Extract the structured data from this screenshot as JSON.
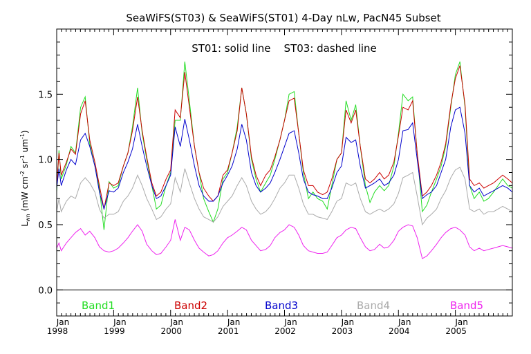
{
  "chart_data": {
    "type": "line",
    "title": "SeaWiFS(ST03) & SeaWiFS(ST01) 4-Day nLw, PacN45 Subset",
    "subtitle": "ST01: solid line    ST03: dashed line",
    "xlabel": "",
    "ylabel": "L_wn (mW cm^-2 sr^-1 um^-1)",
    "ylabel_parts": {
      "main": "L",
      "sub": "wn",
      "open": " (mW cm",
      "exp1": "-2",
      "mid1": " sr",
      "exp2": "-1",
      "mid2": " um",
      "exp3": "-1",
      "close": ")"
    },
    "xlim": [
      1998.0,
      2006.0
    ],
    "ylim": [
      -0.2,
      2.0
    ],
    "x_ticks": [
      {
        "value": 1998,
        "month": "Jan",
        "year": "1998"
      },
      {
        "value": 1999,
        "month": "Jan",
        "year": "1999"
      },
      {
        "value": 2000,
        "month": "Jan",
        "year": "2000"
      },
      {
        "value": 2001,
        "month": "Jan",
        "year": "2001"
      },
      {
        "value": 2002,
        "month": "Jan",
        "year": "2002"
      },
      {
        "value": 2003,
        "month": "Jan",
        "year": "2003"
      },
      {
        "value": 2004,
        "month": "Jan",
        "year": "2004"
      },
      {
        "value": 2005,
        "month": "Jan",
        "year": "2005"
      }
    ],
    "y_ticks": [
      "0.0",
      "0.5",
      "1.0",
      "1.5"
    ],
    "y_tick_values": [
      0.0,
      0.5,
      1.0,
      1.5
    ],
    "zero_line": 0.0,
    "x": [
      1998.0,
      1998.04,
      1998.08,
      1998.17,
      1998.25,
      1998.33,
      1998.42,
      1998.5,
      1998.58,
      1998.67,
      1998.75,
      1998.83,
      1998.92,
      1999.0,
      1999.08,
      1999.17,
      1999.25,
      1999.33,
      1999.42,
      1999.5,
      1999.58,
      1999.67,
      1999.75,
      1999.83,
      1999.92,
      2000.0,
      2000.08,
      2000.17,
      2000.25,
      2000.33,
      2000.42,
      2000.5,
      2000.58,
      2000.67,
      2000.75,
      2000.83,
      2000.92,
      2001.0,
      2001.08,
      2001.17,
      2001.25,
      2001.33,
      2001.42,
      2001.5,
      2001.58,
      2001.67,
      2001.75,
      2001.83,
      2001.92,
      2002.0,
      2002.08,
      2002.17,
      2002.25,
      2002.33,
      2002.42,
      2002.5,
      2002.58,
      2002.67,
      2002.75,
      2002.83,
      2002.92,
      2003.0,
      2003.08,
      2003.17,
      2003.25,
      2003.33,
      2003.42,
      2003.5,
      2003.58,
      2003.67,
      2003.75,
      2003.83,
      2003.92,
      2004.0,
      2004.08,
      2004.17,
      2004.25,
      2004.33,
      2004.42,
      2004.5,
      2004.58,
      2004.67,
      2004.75,
      2004.83,
      2004.92,
      2005.0,
      2005.08,
      2005.17,
      2005.25,
      2005.33,
      2005.42,
      2005.5,
      2005.58,
      2005.67,
      2005.75,
      2005.83,
      2005.92,
      2006.0
    ],
    "series": [
      {
        "name": "Band1",
        "color": "#22dd22",
        "values": [
          0.75,
          1.07,
          0.85,
          0.96,
          1.1,
          1.05,
          1.4,
          1.48,
          1.12,
          0.95,
          0.78,
          0.46,
          0.83,
          0.78,
          0.8,
          0.95,
          1.05,
          1.25,
          1.55,
          1.2,
          1.0,
          0.8,
          0.62,
          0.65,
          0.8,
          0.9,
          1.3,
          1.3,
          1.75,
          1.45,
          1.1,
          0.9,
          0.7,
          0.6,
          0.52,
          0.62,
          0.85,
          0.9,
          1.05,
          1.25,
          1.55,
          1.35,
          1.0,
          0.85,
          0.75,
          0.82,
          0.88,
          1.0,
          1.15,
          1.3,
          1.5,
          1.52,
          1.2,
          0.9,
          0.7,
          0.75,
          0.7,
          0.68,
          0.62,
          0.8,
          1.0,
          1.05,
          1.45,
          1.3,
          1.42,
          1.1,
          0.8,
          0.67,
          0.75,
          0.8,
          0.76,
          0.8,
          0.95,
          1.2,
          1.5,
          1.45,
          1.48,
          1.05,
          0.6,
          0.65,
          0.75,
          0.85,
          0.95,
          1.1,
          1.4,
          1.65,
          1.75,
          1.4,
          0.8,
          0.7,
          0.75,
          0.68,
          0.7,
          0.75,
          0.8,
          0.85,
          0.8,
          0.78
        ]
      },
      {
        "name": "Band2",
        "color": "#cc0000",
        "values": [
          0.8,
          1.05,
          0.88,
          0.98,
          1.08,
          1.04,
          1.35,
          1.45,
          1.15,
          0.98,
          0.8,
          0.62,
          0.82,
          0.8,
          0.82,
          0.95,
          1.05,
          1.22,
          1.48,
          1.22,
          1.02,
          0.82,
          0.72,
          0.75,
          0.85,
          0.92,
          1.38,
          1.32,
          1.67,
          1.4,
          1.1,
          0.9,
          0.78,
          0.72,
          0.68,
          0.72,
          0.88,
          0.92,
          1.05,
          1.22,
          1.55,
          1.35,
          1.02,
          0.88,
          0.8,
          0.88,
          0.92,
          1.02,
          1.15,
          1.3,
          1.45,
          1.47,
          1.2,
          0.92,
          0.8,
          0.8,
          0.75,
          0.73,
          0.75,
          0.85,
          1.0,
          1.05,
          1.38,
          1.28,
          1.38,
          1.1,
          0.85,
          0.82,
          0.85,
          0.9,
          0.85,
          0.88,
          0.98,
          1.18,
          1.4,
          1.38,
          1.45,
          1.05,
          0.72,
          0.75,
          0.8,
          0.88,
          0.98,
          1.12,
          1.42,
          1.62,
          1.72,
          1.42,
          0.85,
          0.8,
          0.82,
          0.78,
          0.8,
          0.82,
          0.85,
          0.88,
          0.85,
          0.82
        ]
      },
      {
        "name": "Band3",
        "color": "#0000cc",
        "values": [
          0.78,
          0.93,
          0.8,
          0.92,
          1.0,
          0.96,
          1.15,
          1.2,
          1.1,
          0.95,
          0.75,
          0.62,
          0.76,
          0.75,
          0.78,
          0.9,
          0.98,
          1.08,
          1.27,
          1.1,
          0.95,
          0.8,
          0.7,
          0.72,
          0.8,
          0.88,
          1.25,
          1.1,
          1.31,
          1.15,
          0.95,
          0.8,
          0.72,
          0.68,
          0.68,
          0.72,
          0.82,
          0.88,
          0.95,
          1.08,
          1.27,
          1.15,
          0.9,
          0.8,
          0.75,
          0.78,
          0.82,
          0.9,
          1.0,
          1.1,
          1.2,
          1.22,
          1.05,
          0.85,
          0.75,
          0.73,
          0.72,
          0.7,
          0.7,
          0.78,
          0.9,
          0.95,
          1.17,
          1.13,
          1.15,
          0.95,
          0.78,
          0.8,
          0.82,
          0.85,
          0.8,
          0.82,
          0.88,
          1.0,
          1.22,
          1.23,
          1.28,
          1.0,
          0.7,
          0.73,
          0.75,
          0.8,
          0.9,
          1.0,
          1.25,
          1.38,
          1.4,
          1.2,
          0.8,
          0.75,
          0.78,
          0.72,
          0.74,
          0.76,
          0.78,
          0.8,
          0.78,
          0.75
        ]
      },
      {
        "name": "Band4",
        "color": "#aaaaaa",
        "values": [
          0.6,
          0.7,
          0.6,
          0.68,
          0.72,
          0.7,
          0.82,
          0.86,
          0.82,
          0.75,
          0.62,
          0.55,
          0.58,
          0.58,
          0.6,
          0.68,
          0.72,
          0.78,
          0.88,
          0.8,
          0.7,
          0.62,
          0.54,
          0.56,
          0.62,
          0.66,
          0.86,
          0.75,
          0.93,
          0.82,
          0.7,
          0.62,
          0.56,
          0.54,
          0.52,
          0.56,
          0.64,
          0.68,
          0.72,
          0.8,
          0.86,
          0.8,
          0.68,
          0.62,
          0.58,
          0.6,
          0.64,
          0.7,
          0.78,
          0.82,
          0.88,
          0.88,
          0.78,
          0.66,
          0.58,
          0.58,
          0.56,
          0.55,
          0.54,
          0.6,
          0.68,
          0.7,
          0.82,
          0.8,
          0.82,
          0.7,
          0.6,
          0.58,
          0.6,
          0.62,
          0.6,
          0.62,
          0.66,
          0.74,
          0.86,
          0.88,
          0.9,
          0.72,
          0.5,
          0.55,
          0.58,
          0.62,
          0.7,
          0.76,
          0.86,
          0.92,
          0.94,
          0.85,
          0.62,
          0.6,
          0.62,
          0.58,
          0.6,
          0.6,
          0.62,
          0.64,
          0.62,
          0.6
        ]
      },
      {
        "name": "Band5",
        "color": "#ee22ee",
        "values": [
          0.32,
          0.36,
          0.3,
          0.36,
          0.4,
          0.44,
          0.47,
          0.42,
          0.45,
          0.4,
          0.33,
          0.3,
          0.29,
          0.3,
          0.32,
          0.36,
          0.4,
          0.45,
          0.5,
          0.45,
          0.35,
          0.3,
          0.27,
          0.28,
          0.33,
          0.38,
          0.54,
          0.38,
          0.48,
          0.46,
          0.38,
          0.32,
          0.29,
          0.26,
          0.27,
          0.3,
          0.36,
          0.4,
          0.42,
          0.45,
          0.48,
          0.46,
          0.38,
          0.34,
          0.3,
          0.31,
          0.34,
          0.4,
          0.44,
          0.46,
          0.5,
          0.48,
          0.42,
          0.34,
          0.3,
          0.29,
          0.28,
          0.28,
          0.29,
          0.34,
          0.4,
          0.42,
          0.46,
          0.48,
          0.47,
          0.4,
          0.33,
          0.3,
          0.31,
          0.35,
          0.32,
          0.33,
          0.38,
          0.45,
          0.48,
          0.5,
          0.49,
          0.4,
          0.24,
          0.26,
          0.3,
          0.35,
          0.4,
          0.44,
          0.47,
          0.48,
          0.46,
          0.42,
          0.33,
          0.3,
          0.32,
          0.3,
          0.31,
          0.32,
          0.33,
          0.34,
          0.33,
          0.32
        ]
      }
    ],
    "grid": false,
    "legend": "bottom-inside"
  }
}
